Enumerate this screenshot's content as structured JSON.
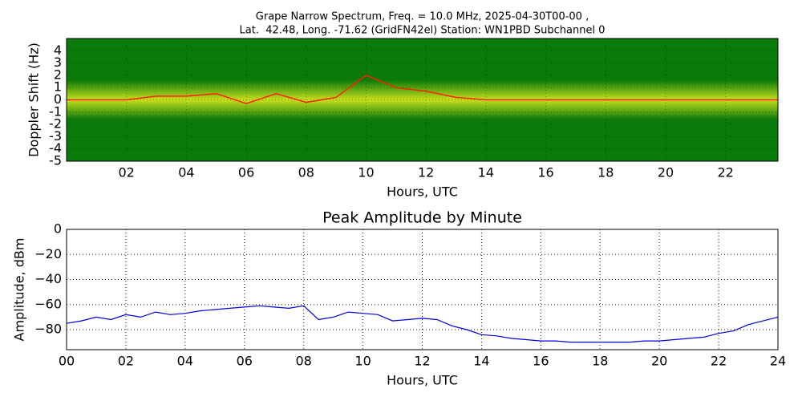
{
  "chart_data": [
    {
      "type": "spectrogram",
      "title": [
        "Grape Narrow Spectrum, Freq. = 10.0 MHz, 2025-04-30T00-00 ,",
        "Lat.  42.48, Long. -71.62 (GridFN42el) Station: WN1PBD Subchannel 0"
      ],
      "x_label": "Hours, UTC",
      "y_label": "Doppler Shift (Hz)",
      "xlim": [
        0,
        23.75
      ],
      "ylim": [
        -5,
        5
      ],
      "xticks": [
        {
          "value": 2,
          "label": "02"
        },
        {
          "value": 4,
          "label": "04"
        },
        {
          "value": 6,
          "label": "06"
        },
        {
          "value": 8,
          "label": "08"
        },
        10,
        12,
        14,
        16,
        18,
        20,
        22
      ],
      "yticks": [
        -5,
        -4,
        -3,
        -2,
        -1,
        0,
        1,
        2,
        3,
        4
      ],
      "grid": true,
      "background": "#0a7a0a",
      "band_color": "#e8f020",
      "x": [
        0,
        1,
        2,
        3,
        4,
        5,
        6,
        7,
        8,
        9,
        10,
        11,
        12,
        13,
        14,
        15,
        16,
        17,
        18,
        19,
        20,
        21,
        22,
        23,
        23.75
      ],
      "series": [
        {
          "color": "#ff2000",
          "values": [
            0,
            0,
            0,
            0.3,
            0.3,
            0.5,
            -0.3,
            0.5,
            -0.2,
            0.2,
            2,
            1,
            0.7,
            0.2,
            0,
            0,
            0,
            0,
            0,
            0,
            0,
            0,
            0,
            0,
            0
          ]
        }
      ]
    },
    {
      "type": "line",
      "title": "Peak Amplitude by Minute",
      "x_label": "Hours, UTC",
      "y_label": "Amplitude, dBm",
      "xlim": [
        0,
        24
      ],
      "ylim": [
        -96,
        0
      ],
      "xticks": [
        {
          "value": 0,
          "label": "00"
        },
        {
          "value": 2,
          "label": "02"
        },
        {
          "value": 4,
          "label": "04"
        },
        {
          "value": 6,
          "label": "06"
        },
        {
          "value": 8,
          "label": "08"
        },
        10,
        12,
        14,
        16,
        18,
        20,
        22,
        24
      ],
      "yticks": [
        {
          "value": -80,
          "label": "−80"
        },
        {
          "value": -60,
          "label": "−60"
        },
        {
          "value": -40,
          "label": "−40"
        },
        {
          "value": -20,
          "label": "−20"
        },
        0
      ],
      "grid": true,
      "x": [
        0,
        0.5,
        1,
        1.5,
        2,
        2.5,
        3,
        3.5,
        4,
        4.5,
        5,
        5.5,
        6,
        6.5,
        7,
        7.5,
        8,
        8.5,
        9,
        9.5,
        10,
        10.5,
        11,
        11.5,
        12,
        12.5,
        13,
        13.5,
        14,
        14.5,
        15,
        15.5,
        16,
        16.5,
        17,
        17.5,
        18,
        18.5,
        19,
        19.5,
        20,
        20.5,
        21,
        21.5,
        22,
        22.5,
        23,
        23.5,
        24
      ],
      "series": [
        {
          "color": "#0000dd",
          "values": [
            -75,
            -73,
            -70,
            -72,
            -68,
            -70,
            -66,
            -68,
            -67,
            -65,
            -64,
            -63,
            -62,
            -61,
            -62,
            -63,
            -61,
            -72,
            -70,
            -66,
            -67,
            -68,
            -73,
            -72,
            -71,
            -72,
            -77,
            -80,
            -84,
            -85,
            -87,
            -88,
            -89,
            -89,
            -90,
            -90,
            -90,
            -90,
            -90,
            -89,
            -89,
            -88,
            -87,
            -86,
            -83,
            -81,
            -76,
            -73,
            -70
          ]
        }
      ]
    }
  ]
}
